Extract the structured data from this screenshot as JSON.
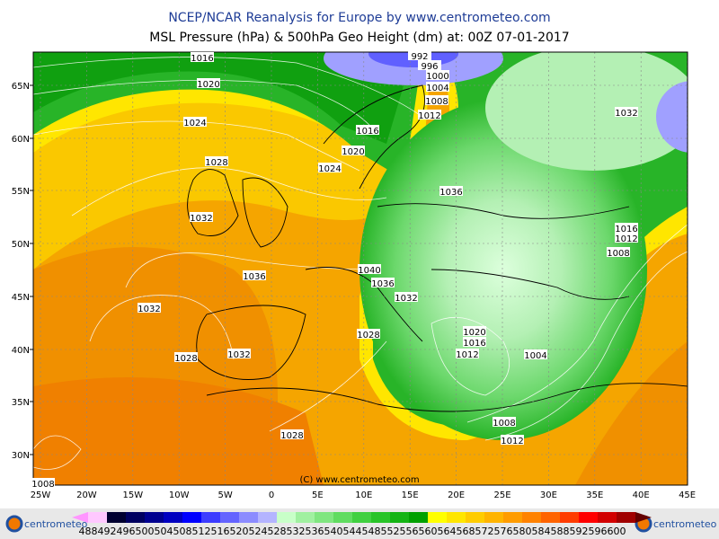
{
  "title": "NCEP/NCAR Reanalysis for Europe by www.centrometeo.com",
  "subtitle": "MSL Pressure (hPa) & 500hPa Geo Height (dm) at: 00Z 07-01-2017",
  "lat_labels": [
    "65N",
    "60N",
    "55N",
    "50N",
    "45N",
    "40N",
    "35N",
    "30N"
  ],
  "lon_labels": [
    "25W",
    "20W",
    "15W",
    "10W",
    "5W",
    "0",
    "5E",
    "10E",
    "15E",
    "20E",
    "25E",
    "30E",
    "35E",
    "40E",
    "45E"
  ],
  "isobar_labels": [
    "1016",
    "1020",
    "1024",
    "1028",
    "1032",
    "1036",
    "1032",
    "1028",
    "1032",
    "1028",
    "992",
    "996",
    "1000",
    "1004",
    "1008",
    "1012",
    "1016",
    "1020",
    "1024",
    "1036",
    "1040",
    "1036",
    "1032",
    "1028",
    "1020",
    "1016",
    "1012",
    "1004",
    "1008",
    "1012",
    "1016",
    "1012",
    "1008",
    "1032",
    "1008"
  ],
  "copyright": "(C) www.centrometeo.com",
  "logo": "centrometeo",
  "scale": {
    "labels": [
      488,
      492,
      496,
      500,
      504,
      508,
      512,
      516,
      520,
      524,
      528,
      532,
      536,
      540,
      544,
      548,
      552,
      556,
      560,
      564,
      568,
      572,
      576,
      580,
      584,
      588,
      592,
      596,
      600
    ],
    "colors": [
      "#ffc8ff",
      "#000030",
      "#000060",
      "#000090",
      "#0000c0",
      "#0000ff",
      "#3c3cff",
      "#6464ff",
      "#8c8cff",
      "#b4b4ff",
      "#c8ffc8",
      "#a0f0a0",
      "#80e680",
      "#60dc60",
      "#40d040",
      "#28c428",
      "#14b414",
      "#00a000",
      "#ffff00",
      "#ffe600",
      "#ffcc00",
      "#ffb400",
      "#ff9c00",
      "#ff8200",
      "#ff6400",
      "#ff3c00",
      "#ff0000",
      "#d20000",
      "#a00000"
    ],
    "low_color": "#ff96ff",
    "high_color": "#640000"
  }
}
